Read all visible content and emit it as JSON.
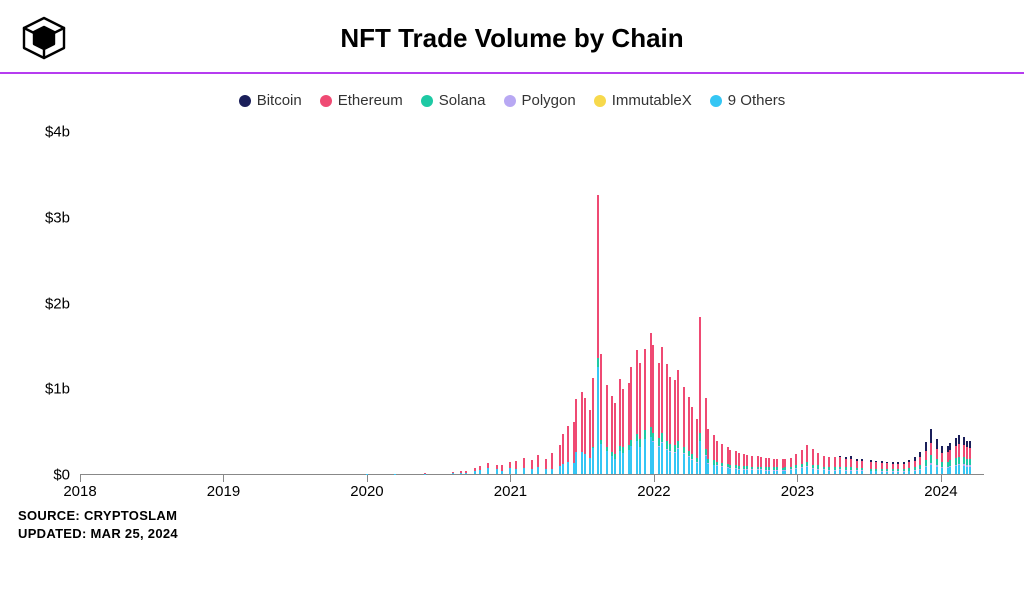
{
  "header": {
    "title": "NFT Trade Volume by Chain",
    "accent_color": "#b63cf0"
  },
  "legend": {
    "items": [
      {
        "label": "Bitcoin",
        "color": "#1b1f5a"
      },
      {
        "label": "Ethereum",
        "color": "#ef4a73"
      },
      {
        "label": "Solana",
        "color": "#1ec9a4"
      },
      {
        "label": "Polygon",
        "color": "#b8a8f3"
      },
      {
        "label": "ImmutableX",
        "color": "#f7d94c"
      },
      {
        "label": "9 Others",
        "color": "#35c6f4"
      }
    ]
  },
  "chart": {
    "type": "stacked-bar",
    "y": {
      "min": 0,
      "max": 4.2,
      "unit": "b",
      "ticks": [
        0,
        1,
        2,
        3,
        4
      ],
      "tick_labels": [
        "$0",
        "$1b",
        "$2b",
        "$3b",
        "$4b"
      ],
      "label_fontsize": 15
    },
    "x": {
      "start_year": 2018,
      "end_year": 2024.3,
      "tick_years": [
        2018,
        2019,
        2020,
        2021,
        2022,
        2023,
        2024
      ],
      "label_fontsize": 15
    },
    "colors": {
      "bitcoin": "#1b1f5a",
      "ethereum": "#ef4a73",
      "solana": "#1ec9a4",
      "polygon": "#b8a8f3",
      "immutablex": "#f7d94c",
      "others": "#35c6f4",
      "grid": "#e0e0e0",
      "axis": "#888888",
      "background": "#ffffff"
    },
    "bar_gap_ratio": 0.35,
    "weeks": [
      {
        "y": 2018.0,
        "bt": 0,
        "et": 0.0,
        "so": 0,
        "po": 0,
        "im": 0,
        "ot": 0.0
      },
      {
        "y": 2018.5,
        "bt": 0,
        "et": 0.0,
        "so": 0,
        "po": 0,
        "im": 0,
        "ot": 0.0
      },
      {
        "y": 2019.0,
        "bt": 0,
        "et": 0.0,
        "so": 0,
        "po": 0,
        "im": 0,
        "ot": 0.0
      },
      {
        "y": 2019.5,
        "bt": 0,
        "et": 0.0,
        "so": 0,
        "po": 0,
        "im": 0,
        "ot": 0.0
      },
      {
        "y": 2020.0,
        "bt": 0,
        "et": 0.0,
        "so": 0,
        "po": 0,
        "im": 0,
        "ot": 0.005
      },
      {
        "y": 2020.2,
        "bt": 0,
        "et": 0.002,
        "so": 0,
        "po": 0,
        "im": 0,
        "ot": 0.004
      },
      {
        "y": 2020.4,
        "bt": 0,
        "et": 0.003,
        "so": 0,
        "po": 0,
        "im": 0,
        "ot": 0.006
      },
      {
        "y": 2020.6,
        "bt": 0,
        "et": 0.01,
        "so": 0,
        "po": 0,
        "im": 0,
        "ot": 0.01
      },
      {
        "y": 2020.65,
        "bt": 0,
        "et": 0.015,
        "so": 0,
        "po": 0,
        "im": 0,
        "ot": 0.015
      },
      {
        "y": 2020.7,
        "bt": 0,
        "et": 0.02,
        "so": 0,
        "po": 0,
        "im": 0,
        "ot": 0.015
      },
      {
        "y": 2020.75,
        "bt": 0,
        "et": 0.03,
        "so": 0,
        "po": 0,
        "im": 0,
        "ot": 0.035
      },
      {
        "y": 2020.8,
        "bt": 0,
        "et": 0.04,
        "so": 0,
        "po": 0,
        "im": 0,
        "ot": 0.05
      },
      {
        "y": 2020.85,
        "bt": 0,
        "et": 0.055,
        "so": 0,
        "po": 0,
        "im": 0,
        "ot": 0.075
      },
      {
        "y": 2020.9,
        "bt": 0,
        "et": 0.05,
        "so": 0,
        "po": 0,
        "im": 0,
        "ot": 0.06
      },
      {
        "y": 2020.95,
        "bt": 0,
        "et": 0.06,
        "so": 0,
        "po": 0,
        "im": 0,
        "ot": 0.04
      },
      {
        "y": 2021.0,
        "bt": 0,
        "et": 0.07,
        "so": 0,
        "po": 0,
        "im": 0,
        "ot": 0.07
      },
      {
        "y": 2021.05,
        "bt": 0,
        "et": 0.09,
        "so": 0,
        "po": 0,
        "im": 0,
        "ot": 0.06
      },
      {
        "y": 2021.1,
        "bt": 0,
        "et": 0.12,
        "so": 0,
        "po": 0,
        "im": 0,
        "ot": 0.07
      },
      {
        "y": 2021.15,
        "bt": 0,
        "et": 0.1,
        "so": 0,
        "po": 0,
        "im": 0,
        "ot": 0.06
      },
      {
        "y": 2021.2,
        "bt": 0,
        "et": 0.14,
        "so": 0,
        "po": 0,
        "im": 0,
        "ot": 0.08
      },
      {
        "y": 2021.25,
        "bt": 0,
        "et": 0.11,
        "so": 0,
        "po": 0,
        "im": 0,
        "ot": 0.06
      },
      {
        "y": 2021.3,
        "bt": 0,
        "et": 0.18,
        "so": 0,
        "po": 0,
        "im": 0,
        "ot": 0.06
      },
      {
        "y": 2021.35,
        "bt": 0,
        "et": 0.25,
        "so": 0,
        "po": 0,
        "im": 0,
        "ot": 0.09
      },
      {
        "y": 2021.38,
        "bt": 0,
        "et": 0.35,
        "so": 0,
        "po": 0,
        "im": 0,
        "ot": 0.12
      },
      {
        "y": 2021.41,
        "bt": 0,
        "et": 0.42,
        "so": 0,
        "po": 0,
        "im": 0,
        "ot": 0.14
      },
      {
        "y": 2021.44,
        "bt": 0,
        "et": 0.48,
        "so": 0,
        "po": 0,
        "im": 0,
        "ot": 0.13
      },
      {
        "y": 2021.47,
        "bt": 0,
        "et": 0.62,
        "so": 0,
        "po": 0,
        "im": 0,
        "ot": 0.26
      },
      {
        "y": 2021.5,
        "bt": 0,
        "et": 0.7,
        "so": 0,
        "po": 0,
        "im": 0,
        "ot": 0.26
      },
      {
        "y": 2021.53,
        "bt": 0,
        "et": 0.66,
        "so": 0,
        "po": 0,
        "im": 0,
        "ot": 0.23
      },
      {
        "y": 2021.56,
        "bt": 0,
        "et": 0.56,
        "so": 0,
        "po": 0,
        "im": 0,
        "ot": 0.19
      },
      {
        "y": 2021.59,
        "bt": 0,
        "et": 0.8,
        "so": 0.02,
        "po": 0,
        "im": 0,
        "ot": 0.3
      },
      {
        "y": 2021.62,
        "bt": 0,
        "et": 1.9,
        "so": 0.1,
        "po": 0,
        "im": 0,
        "ot": 1.25
      },
      {
        "y": 2021.65,
        "bt": 0,
        "et": 1.0,
        "so": 0.05,
        "po": 0,
        "im": 0,
        "ot": 0.35
      },
      {
        "y": 2021.68,
        "bt": 0,
        "et": 0.72,
        "so": 0.05,
        "po": 0,
        "im": 0,
        "ot": 0.27
      },
      {
        "y": 2021.71,
        "bt": 0,
        "et": 0.65,
        "so": 0.05,
        "po": 0,
        "im": 0,
        "ot": 0.21
      },
      {
        "y": 2021.74,
        "bt": 0,
        "et": 0.6,
        "so": 0.05,
        "po": 0,
        "im": 0,
        "ot": 0.18
      },
      {
        "y": 2021.77,
        "bt": 0,
        "et": 0.78,
        "so": 0.06,
        "po": 0,
        "im": 0,
        "ot": 0.27
      },
      {
        "y": 2021.8,
        "bt": 0,
        "et": 0.68,
        "so": 0.06,
        "po": 0,
        "im": 0,
        "ot": 0.25
      },
      {
        "y": 2021.83,
        "bt": 0,
        "et": 0.72,
        "so": 0.06,
        "po": 0,
        "im": 0,
        "ot": 0.28
      },
      {
        "y": 2021.86,
        "bt": 0,
        "et": 0.85,
        "so": 0.07,
        "po": 0,
        "im": 0,
        "ot": 0.33
      },
      {
        "y": 2021.89,
        "bt": 0,
        "et": 0.98,
        "so": 0.09,
        "po": 0,
        "im": 0,
        "ot": 0.38
      },
      {
        "y": 2021.92,
        "bt": 0,
        "et": 0.88,
        "so": 0.09,
        "po": 0,
        "im": 0,
        "ot": 0.32
      },
      {
        "y": 2021.95,
        "bt": 0,
        "et": 0.95,
        "so": 0.1,
        "po": 0,
        "im": 0,
        "ot": 0.41
      },
      {
        "y": 2021.98,
        "bt": 0,
        "et": 1.1,
        "so": 0.12,
        "po": 0,
        "im": 0,
        "ot": 0.43
      },
      {
        "y": 2022.01,
        "bt": 0,
        "et": 1.02,
        "so": 0.1,
        "po": 0.01,
        "im": 0,
        "ot": 0.37
      },
      {
        "y": 2022.04,
        "bt": 0,
        "et": 0.87,
        "so": 0.09,
        "po": 0.01,
        "im": 0,
        "ot": 0.32
      },
      {
        "y": 2022.07,
        "bt": 0,
        "et": 1.0,
        "so": 0.11,
        "po": 0.01,
        "im": 0,
        "ot": 0.36
      },
      {
        "y": 2022.1,
        "bt": 0,
        "et": 0.9,
        "so": 0.09,
        "po": 0.01,
        "im": 0,
        "ot": 0.28
      },
      {
        "y": 2022.13,
        "bt": 0,
        "et": 0.78,
        "so": 0.08,
        "po": 0.01,
        "im": 0,
        "ot": 0.26
      },
      {
        "y": 2022.16,
        "bt": 0,
        "et": 0.76,
        "so": 0.08,
        "po": 0.01,
        "im": 0,
        "ot": 0.25
      },
      {
        "y": 2022.19,
        "bt": 0,
        "et": 0.82,
        "so": 0.09,
        "po": 0.01,
        "im": 0,
        "ot": 0.29
      },
      {
        "y": 2022.22,
        "bt": 0,
        "et": 0.7,
        "so": 0.07,
        "po": 0.01,
        "im": 0,
        "ot": 0.23
      },
      {
        "y": 2022.25,
        "bt": 0,
        "et": 0.63,
        "so": 0.06,
        "po": 0.01,
        "im": 0,
        "ot": 0.2
      },
      {
        "y": 2022.28,
        "bt": 0,
        "et": 0.55,
        "so": 0.06,
        "po": 0.01,
        "im": 0,
        "ot": 0.16
      },
      {
        "y": 2022.31,
        "bt": 0,
        "et": 0.45,
        "so": 0.05,
        "po": 0.01,
        "im": 0,
        "ot": 0.13
      },
      {
        "y": 2022.34,
        "bt": 0,
        "et": 1.35,
        "so": 0.09,
        "po": 0.01,
        "im": 0,
        "ot": 0.38
      },
      {
        "y": 2022.37,
        "bt": 0,
        "et": 0.6,
        "so": 0.07,
        "po": 0.01,
        "im": 0,
        "ot": 0.21
      },
      {
        "y": 2022.4,
        "bt": 0,
        "et": 0.35,
        "so": 0.05,
        "po": 0.01,
        "im": 0,
        "ot": 0.12
      },
      {
        "y": 2022.43,
        "bt": 0,
        "et": 0.3,
        "so": 0.05,
        "po": 0.01,
        "im": 0,
        "ot": 0.1
      },
      {
        "y": 2022.46,
        "bt": 0,
        "et": 0.25,
        "so": 0.04,
        "po": 0.01,
        "im": 0,
        "ot": 0.09
      },
      {
        "y": 2022.49,
        "bt": 0,
        "et": 0.22,
        "so": 0.04,
        "po": 0.01,
        "im": 0,
        "ot": 0.08
      },
      {
        "y": 2022.52,
        "bt": 0,
        "et": 0.2,
        "so": 0.04,
        "po": 0.01,
        "im": 0,
        "ot": 0.07
      },
      {
        "y": 2022.55,
        "bt": 0,
        "et": 0.18,
        "so": 0.03,
        "po": 0.01,
        "im": 0,
        "ot": 0.06
      },
      {
        "y": 2022.58,
        "bt": 0,
        "et": 0.17,
        "so": 0.03,
        "po": 0.01,
        "im": 0,
        "ot": 0.06
      },
      {
        "y": 2022.61,
        "bt": 0,
        "et": 0.15,
        "so": 0.03,
        "po": 0.01,
        "im": 0,
        "ot": 0.05
      },
      {
        "y": 2022.64,
        "bt": 0,
        "et": 0.14,
        "so": 0.03,
        "po": 0.01,
        "im": 0,
        "ot": 0.05
      },
      {
        "y": 2022.67,
        "bt": 0,
        "et": 0.13,
        "so": 0.03,
        "po": 0.01,
        "im": 0,
        "ot": 0.05
      },
      {
        "y": 2022.7,
        "bt": 0,
        "et": 0.125,
        "so": 0.03,
        "po": 0.01,
        "im": 0,
        "ot": 0.045
      },
      {
        "y": 2022.73,
        "bt": 0,
        "et": 0.12,
        "so": 0.03,
        "po": 0.01,
        "im": 0,
        "ot": 0.045
      },
      {
        "y": 2022.76,
        "bt": 0,
        "et": 0.115,
        "so": 0.03,
        "po": 0.01,
        "im": 0,
        "ot": 0.045
      },
      {
        "y": 2022.79,
        "bt": 0,
        "et": 0.11,
        "so": 0.03,
        "po": 0.01,
        "im": 0,
        "ot": 0.04
      },
      {
        "y": 2022.82,
        "bt": 0,
        "et": 0.105,
        "so": 0.03,
        "po": 0.01,
        "im": 0,
        "ot": 0.04
      },
      {
        "y": 2022.85,
        "bt": 0,
        "et": 0.1,
        "so": 0.03,
        "po": 0.01,
        "im": 0,
        "ot": 0.04
      },
      {
        "y": 2022.88,
        "bt": 0,
        "et": 0.1,
        "so": 0.03,
        "po": 0.01,
        "im": 0,
        "ot": 0.04
      },
      {
        "y": 2022.91,
        "bt": 0,
        "et": 0.095,
        "so": 0.03,
        "po": 0.01,
        "im": 0,
        "ot": 0.035
      },
      {
        "y": 2022.94,
        "bt": 0,
        "et": 0.095,
        "so": 0.03,
        "po": 0.01,
        "im": 0,
        "ot": 0.04
      },
      {
        "y": 2022.97,
        "bt": 0,
        "et": 0.1,
        "so": 0.03,
        "po": 0.01,
        "im": 0,
        "ot": 0.045
      },
      {
        "y": 2023.0,
        "bt": 0,
        "et": 0.12,
        "so": 0.04,
        "po": 0.01,
        "im": 0,
        "ot": 0.06
      },
      {
        "y": 2023.04,
        "bt": 0,
        "et": 0.16,
        "so": 0.04,
        "po": 0.01,
        "im": 0,
        "ot": 0.07
      },
      {
        "y": 2023.08,
        "bt": 0,
        "et": 0.2,
        "so": 0.05,
        "po": 0.01,
        "im": 0,
        "ot": 0.08
      },
      {
        "y": 2023.12,
        "bt": 0,
        "et": 0.18,
        "so": 0.04,
        "po": 0.01,
        "im": 0,
        "ot": 0.06
      },
      {
        "y": 2023.16,
        "bt": 0,
        "et": 0.15,
        "so": 0.04,
        "po": 0.01,
        "im": 0,
        "ot": 0.05
      },
      {
        "y": 2023.2,
        "bt": 0,
        "et": 0.13,
        "so": 0.03,
        "po": 0.01,
        "im": 0,
        "ot": 0.045
      },
      {
        "y": 2023.24,
        "bt": 0,
        "et": 0.12,
        "so": 0.03,
        "po": 0.01,
        "im": 0,
        "ot": 0.04
      },
      {
        "y": 2023.28,
        "bt": 0,
        "et": 0.115,
        "so": 0.03,
        "po": 0.01,
        "im": 0,
        "ot": 0.04
      },
      {
        "y": 2023.32,
        "bt": 0.01,
        "et": 0.11,
        "so": 0.03,
        "po": 0.01,
        "im": 0,
        "ot": 0.045
      },
      {
        "y": 2023.36,
        "bt": 0.02,
        "et": 0.1,
        "so": 0.03,
        "po": 0.01,
        "im": 0,
        "ot": 0.04
      },
      {
        "y": 2023.4,
        "bt": 0.03,
        "et": 0.095,
        "so": 0.03,
        "po": 0.01,
        "im": 0,
        "ot": 0.04
      },
      {
        "y": 2023.44,
        "bt": 0.02,
        "et": 0.09,
        "so": 0.02,
        "po": 0.01,
        "im": 0,
        "ot": 0.035
      },
      {
        "y": 2023.48,
        "bt": 0.02,
        "et": 0.085,
        "so": 0.02,
        "po": 0.01,
        "im": 0,
        "ot": 0.035
      },
      {
        "y": 2023.52,
        "bt": 0.02,
        "et": 0.08,
        "so": 0.02,
        "po": 0.01,
        "im": 0,
        "ot": 0.03
      },
      {
        "y": 2023.56,
        "bt": 0.02,
        "et": 0.075,
        "so": 0.02,
        "po": 0.01,
        "im": 0,
        "ot": 0.03
      },
      {
        "y": 2023.6,
        "bt": 0.02,
        "et": 0.07,
        "so": 0.02,
        "po": 0.01,
        "im": 0,
        "ot": 0.028
      },
      {
        "y": 2023.64,
        "bt": 0.02,
        "et": 0.068,
        "so": 0.02,
        "po": 0.01,
        "im": 0,
        "ot": 0.028
      },
      {
        "y": 2023.68,
        "bt": 0.02,
        "et": 0.065,
        "so": 0.02,
        "po": 0.01,
        "im": 0,
        "ot": 0.026
      },
      {
        "y": 2023.72,
        "bt": 0.02,
        "et": 0.065,
        "so": 0.02,
        "po": 0.01,
        "im": 0,
        "ot": 0.028
      },
      {
        "y": 2023.76,
        "bt": 0.02,
        "et": 0.06,
        "so": 0.02,
        "po": 0.01,
        "im": 0,
        "ot": 0.025
      },
      {
        "y": 2023.8,
        "bt": 0.03,
        "et": 0.065,
        "so": 0.03,
        "po": 0.01,
        "im": 0,
        "ot": 0.03
      },
      {
        "y": 2023.84,
        "bt": 0.04,
        "et": 0.07,
        "so": 0.04,
        "po": 0.01,
        "im": 0,
        "ot": 0.035
      },
      {
        "y": 2023.88,
        "bt": 0.06,
        "et": 0.085,
        "so": 0.05,
        "po": 0.01,
        "im": 0,
        "ot": 0.05
      },
      {
        "y": 2023.92,
        "bt": 0.1,
        "et": 0.11,
        "so": 0.07,
        "po": 0.01,
        "im": 0,
        "ot": 0.08
      },
      {
        "y": 2023.96,
        "bt": 0.16,
        "et": 0.14,
        "so": 0.09,
        "po": 0.02,
        "im": 0,
        "ot": 0.11
      },
      {
        "y": 2024.0,
        "bt": 0.12,
        "et": 0.12,
        "so": 0.07,
        "po": 0.02,
        "im": 0,
        "ot": 0.08
      },
      {
        "y": 2024.03,
        "bt": 0.08,
        "et": 0.11,
        "so": 0.06,
        "po": 0.01,
        "im": 0,
        "ot": 0.07
      },
      {
        "y": 2024.06,
        "bt": 0.07,
        "et": 0.115,
        "so": 0.06,
        "po": 0.01,
        "im": 0,
        "ot": 0.07
      },
      {
        "y": 2024.09,
        "bt": 0.08,
        "et": 0.125,
        "so": 0.07,
        "po": 0.01,
        "im": 0,
        "ot": 0.08
      },
      {
        "y": 2024.12,
        "bt": 0.09,
        "et": 0.14,
        "so": 0.08,
        "po": 0.02,
        "im": 0,
        "ot": 0.09
      },
      {
        "y": 2024.15,
        "bt": 0.1,
        "et": 0.15,
        "so": 0.08,
        "po": 0.02,
        "im": 0,
        "ot": 0.1
      },
      {
        "y": 2024.18,
        "bt": 0.09,
        "et": 0.145,
        "so": 0.08,
        "po": 0.02,
        "im": 0,
        "ot": 0.095
      },
      {
        "y": 2024.21,
        "bt": 0.08,
        "et": 0.135,
        "so": 0.07,
        "po": 0.02,
        "im": 0,
        "ot": 0.085
      },
      {
        "y": 2024.23,
        "bt": 0.08,
        "et": 0.13,
        "so": 0.07,
        "po": 0.02,
        "im": 0,
        "ot": 0.08
      }
    ]
  },
  "footer": {
    "source_label": "SOURCE: CRYPTOSLAM",
    "updated_label": "UPDATED: MAR 25, 2024"
  }
}
